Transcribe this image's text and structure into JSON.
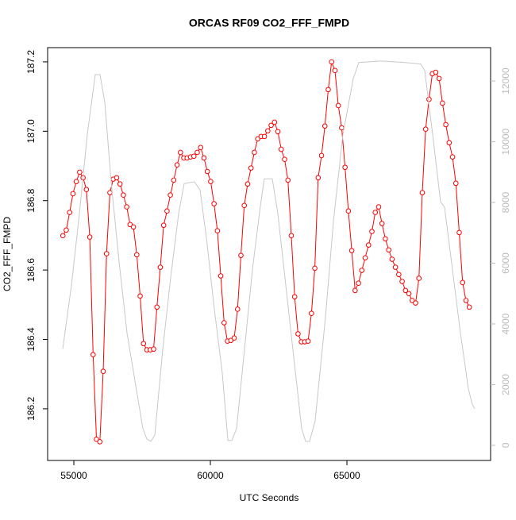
{
  "chart_data": {
    "type": "line",
    "title": "ORCAS RF09 CO2_FFF_FMPD",
    "xlabel": "UTC Seconds",
    "ylabel": "CO2_FFF_FMPD",
    "xlim": [
      54041,
      70262
    ],
    "xticks": [
      55000,
      60000,
      65000
    ],
    "ylim": [
      186.051,
      187.241
    ],
    "yticks": [
      186.2,
      186.4,
      186.6,
      186.8,
      {
        "value": 187,
        "label": "187.0"
      },
      187.2
    ],
    "y2lim": [
      -498,
      13100
    ],
    "y2ticks": [
      0,
      2000,
      4000,
      6000,
      8000,
      10000,
      12000
    ],
    "series": [
      {
        "color": "#ff0000",
        "markers": true,
        "x": [
          54600,
          54723,
          54846,
          54969,
          55092,
          55215,
          55338,
          55461,
          55584,
          55707,
          55830,
          55953,
          56076,
          56199,
          56322,
          56445,
          56568,
          56691,
          56814,
          56937,
          57060,
          57183,
          57306,
          57429,
          57552,
          57675,
          57798,
          57921,
          58044,
          58167,
          58290,
          58413,
          58536,
          58659,
          58782,
          58905,
          59028,
          59151,
          59274,
          59397,
          59520,
          59643,
          59766,
          59889,
          60012,
          60135,
          60258,
          60381,
          60504,
          60627,
          60750,
          60873,
          60996,
          61119,
          61242,
          61365,
          61488,
          61611,
          61734,
          61857,
          61980,
          62103,
          62226,
          62349,
          62472,
          62595,
          62718,
          62841,
          62964,
          63087,
          63210,
          63333,
          63456,
          63579,
          63702,
          63825,
          63948,
          64071,
          64194,
          64317,
          64440,
          64563,
          64686,
          64809,
          64932,
          65055,
          65178,
          65301,
          65424,
          65547,
          65670,
          65793,
          65916,
          66039,
          66162,
          66285,
          66408,
          66531,
          66654,
          66777,
          66900,
          67023,
          67146,
          67269,
          67392,
          67515,
          67638,
          67761,
          67884,
          68007,
          68130,
          68253,
          68376,
          68499,
          68622,
          68745,
          68868,
          68991,
          69114,
          69237,
          69360,
          69483
        ],
        "values": [
          186.699,
          186.715,
          186.766,
          186.82,
          186.855,
          186.882,
          186.866,
          186.832,
          186.695,
          186.356,
          186.112,
          186.105,
          186.308,
          186.647,
          186.823,
          186.862,
          186.866,
          186.848,
          186.816,
          186.782,
          186.731,
          186.724,
          186.644,
          186.525,
          186.388,
          186.37,
          186.37,
          186.372,
          186.493,
          186.608,
          186.729,
          186.77,
          186.816,
          186.859,
          186.903,
          186.939,
          186.923,
          186.923,
          186.926,
          186.928,
          186.939,
          186.953,
          186.923,
          186.884,
          186.855,
          186.791,
          186.713,
          186.583,
          186.448,
          186.395,
          186.397,
          186.404,
          186.487,
          186.642,
          186.786,
          186.848,
          186.894,
          186.939,
          186.978,
          186.985,
          186.985,
          187.001,
          187.017,
          187.026,
          186.999,
          186.948,
          186.919,
          186.859,
          186.699,
          186.523,
          186.416,
          186.393,
          186.393,
          186.395,
          186.475,
          186.605,
          186.866,
          186.93,
          187.015,
          187.12,
          187.2,
          187.175,
          187.074,
          187.01,
          186.896,
          186.77,
          186.656,
          186.541,
          186.562,
          186.599,
          186.635,
          186.672,
          186.711,
          186.766,
          186.782,
          186.734,
          186.69,
          186.658,
          186.631,
          186.608,
          186.587,
          186.567,
          186.541,
          186.532,
          186.512,
          186.505,
          186.576,
          186.823,
          187.006,
          187.092,
          187.166,
          187.17,
          187.152,
          187.081,
          187.019,
          186.967,
          186.926,
          186.85,
          186.708,
          186.564,
          186.512,
          186.493
        ]
      },
      {
        "color": "#c8c8c8",
        "axis": "y2",
        "markers": false,
        "x": [
          54593,
          54913,
          55204,
          55495,
          55785,
          55960,
          56134,
          56367,
          56657,
          56948,
          57239,
          57530,
          57675,
          57820,
          57966,
          58257,
          58547,
          58838,
          59041,
          59419,
          59623,
          59855,
          60146,
          60437,
          60641,
          60786,
          60960,
          61251,
          61541,
          61832,
          61977,
          62268,
          62471,
          62762,
          63053,
          63343,
          63489,
          63634,
          63837,
          64215,
          64506,
          64855,
          65233,
          65436,
          66250,
          67122,
          67703,
          67849,
          68139,
          68430,
          68576,
          68866,
          69157,
          69448,
          69594,
          69681
        ],
        "values": [
          3170,
          5270,
          7630,
          10250,
          12210,
          12210,
          11300,
          8680,
          6050,
          3700,
          2120,
          550,
          210,
          130,
          340,
          3170,
          5530,
          7630,
          8620,
          8680,
          8410,
          6840,
          4480,
          2380,
          160,
          160,
          550,
          3170,
          5790,
          7890,
          8780,
          8780,
          7630,
          5270,
          2910,
          550,
          130,
          130,
          810,
          4220,
          7370,
          10250,
          12080,
          12610,
          12660,
          12610,
          12560,
          12350,
          10250,
          8020,
          7840,
          5790,
          3700,
          1860,
          1340,
          1210
        ]
      }
    ]
  }
}
